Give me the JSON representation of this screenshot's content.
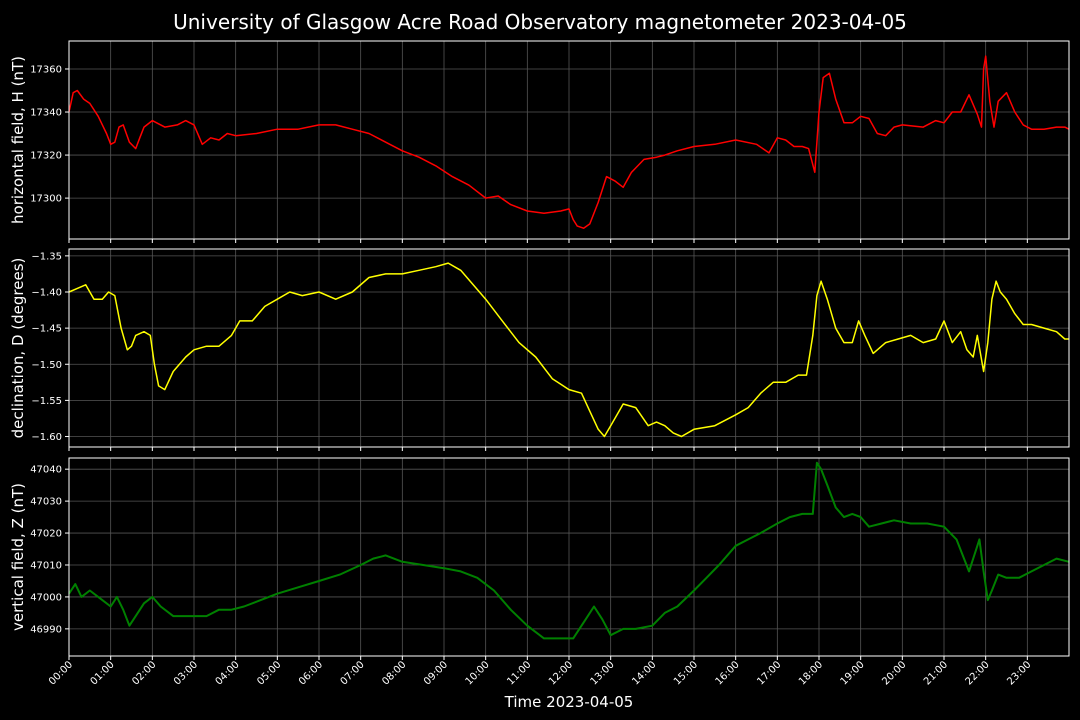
{
  "chart_data": {
    "type": "line",
    "title": "University of Glasgow Acre Road Observatory magnetometer 2023-04-05",
    "xlabel": "Time 2023-04-05",
    "xlim_hours": [
      0,
      24
    ],
    "x_ticks": [
      "00:00",
      "01:00",
      "02:00",
      "03:00",
      "04:00",
      "05:00",
      "06:00",
      "07:00",
      "08:00",
      "09:00",
      "10:00",
      "11:00",
      "12:00",
      "13:00",
      "14:00",
      "15:00",
      "16:00",
      "17:00",
      "18:00",
      "19:00",
      "20:00",
      "21:00",
      "22:00",
      "23:00"
    ],
    "grid": true,
    "background": "#000000",
    "grid_color": "#555555",
    "panels": [
      {
        "name": "horizontal",
        "ylabel": "horizontal field, H (nT)",
        "color": "#ff0000",
        "ylim": [
          17281,
          17373
        ],
        "yticks": [
          17300,
          17320,
          17340,
          17360
        ],
        "ytick_labels": [
          "17300",
          "17320",
          "17340",
          "17360"
        ],
        "x": [
          0,
          0.1,
          0.2,
          0.35,
          0.5,
          0.7,
          0.9,
          1.0,
          1.1,
          1.2,
          1.3,
          1.45,
          1.6,
          1.7,
          1.8,
          2.0,
          2.3,
          2.6,
          2.8,
          3.0,
          3.2,
          3.4,
          3.6,
          3.8,
          4.0,
          4.5,
          5.0,
          5.5,
          6.0,
          6.4,
          6.8,
          7.2,
          7.6,
          8.0,
          8.4,
          8.8,
          9.2,
          9.6,
          10.0,
          10.3,
          10.6,
          11.0,
          11.4,
          11.8,
          12.0,
          12.1,
          12.2,
          12.35,
          12.5,
          12.7,
          12.9,
          13.1,
          13.3,
          13.5,
          13.8,
          14.1,
          14.3,
          14.6,
          15.0,
          15.5,
          16.0,
          16.5,
          16.8,
          17.0,
          17.2,
          17.4,
          17.6,
          17.75,
          17.9,
          18.0,
          18.1,
          18.25,
          18.4,
          18.6,
          18.8,
          19.0,
          19.2,
          19.4,
          19.6,
          19.8,
          20.0,
          20.5,
          20.8,
          21.0,
          21.2,
          21.4,
          21.6,
          21.8,
          21.9,
          21.95,
          22.0,
          22.1,
          22.2,
          22.3,
          22.5,
          22.7,
          22.9,
          23.1,
          23.4,
          23.7,
          23.9,
          24.0
        ],
        "y": [
          17340,
          17349,
          17350,
          17346,
          17344,
          17338,
          17330,
          17325,
          17326,
          17333,
          17334,
          17326,
          17323,
          17328,
          17333,
          17336,
          17333,
          17334,
          17336,
          17334,
          17325,
          17328,
          17327,
          17330,
          17329,
          17330,
          17332,
          17332,
          17334,
          17334,
          17332,
          17330,
          17326,
          17322,
          17319,
          17315,
          17310,
          17306,
          17300,
          17301,
          17297,
          17294,
          17293,
          17294,
          17295,
          17290,
          17287,
          17286,
          17288,
          17298,
          17310,
          17308,
          17305,
          17312,
          17318,
          17319,
          17320,
          17322,
          17324,
          17325,
          17327,
          17325,
          17321,
          17328,
          17327,
          17324,
          17324,
          17323,
          17312,
          17340,
          17356,
          17358,
          17346,
          17335,
          17335,
          17338,
          17337,
          17330,
          17329,
          17333,
          17334,
          17333,
          17336,
          17335,
          17340,
          17340,
          17348,
          17339,
          17333,
          17360,
          17366,
          17345,
          17333,
          17345,
          17349,
          17340,
          17334,
          17332,
          17332,
          17333,
          17333,
          17332
        ]
      },
      {
        "name": "declination",
        "ylabel": "declination, D (degrees)",
        "color": "#ffff00",
        "ylim": [
          -1.6145,
          -1.3405
        ],
        "yticks": [
          -1.6,
          -1.55,
          -1.5,
          -1.45,
          -1.4,
          -1.35
        ],
        "ytick_labels": [
          "−1.60",
          "−1.55",
          "−1.50",
          "−1.45",
          "−1.40",
          "−1.35"
        ],
        "x": [
          0,
          0.2,
          0.4,
          0.6,
          0.8,
          0.95,
          1.1,
          1.25,
          1.4,
          1.5,
          1.6,
          1.8,
          1.95,
          2.05,
          2.15,
          2.3,
          2.5,
          2.8,
          3.0,
          3.3,
          3.6,
          3.9,
          4.1,
          4.4,
          4.7,
          5.0,
          5.3,
          5.6,
          6.0,
          6.4,
          6.8,
          7.2,
          7.6,
          8.0,
          8.4,
          8.8,
          9.1,
          9.4,
          9.7,
          10.0,
          10.4,
          10.8,
          11.2,
          11.6,
          12.0,
          12.3,
          12.5,
          12.7,
          12.85,
          13.0,
          13.3,
          13.6,
          13.9,
          14.1,
          14.3,
          14.5,
          14.7,
          15.0,
          15.5,
          16.0,
          16.3,
          16.6,
          16.9,
          17.2,
          17.5,
          17.7,
          17.85,
          17.95,
          18.05,
          18.2,
          18.4,
          18.6,
          18.8,
          18.95,
          19.1,
          19.3,
          19.6,
          19.9,
          20.2,
          20.5,
          20.8,
          21.0,
          21.2,
          21.4,
          21.55,
          21.7,
          21.8,
          21.95,
          22.05,
          22.15,
          22.25,
          22.35,
          22.5,
          22.7,
          22.9,
          23.1,
          23.4,
          23.7,
          23.9,
          24.0
        ],
        "y": [
          -1.4,
          -1.395,
          -1.39,
          -1.41,
          -1.41,
          -1.4,
          -1.405,
          -1.45,
          -1.48,
          -1.475,
          -1.46,
          -1.455,
          -1.46,
          -1.5,
          -1.53,
          -1.535,
          -1.51,
          -1.49,
          -1.48,
          -1.475,
          -1.475,
          -1.46,
          -1.44,
          -1.44,
          -1.42,
          -1.41,
          -1.4,
          -1.405,
          -1.4,
          -1.41,
          -1.4,
          -1.38,
          -1.375,
          -1.375,
          -1.37,
          -1.365,
          -1.36,
          -1.37,
          -1.39,
          -1.41,
          -1.44,
          -1.47,
          -1.49,
          -1.52,
          -1.535,
          -1.54,
          -1.565,
          -1.59,
          -1.6,
          -1.585,
          -1.555,
          -1.56,
          -1.585,
          -1.58,
          -1.585,
          -1.595,
          -1.6,
          -1.59,
          -1.585,
          -1.57,
          -1.56,
          -1.54,
          -1.525,
          -1.525,
          -1.515,
          -1.515,
          -1.46,
          -1.405,
          -1.385,
          -1.41,
          -1.45,
          -1.47,
          -1.47,
          -1.44,
          -1.46,
          -1.485,
          -1.47,
          -1.465,
          -1.46,
          -1.47,
          -1.465,
          -1.44,
          -1.47,
          -1.455,
          -1.48,
          -1.49,
          -1.46,
          -1.51,
          -1.47,
          -1.41,
          -1.385,
          -1.4,
          -1.41,
          -1.43,
          -1.445,
          -1.445,
          -1.45,
          -1.455,
          -1.465,
          -1.465
        ]
      },
      {
        "name": "vertical",
        "ylabel": "vertical field, Z (nT)",
        "color": "#008000",
        "ylim": [
          46981.5,
          47043.5
        ],
        "yticks": [
          46990,
          47000,
          47010,
          47020,
          47030,
          47040
        ],
        "ytick_labels": [
          "46990",
          "47000",
          "47010",
          "47020",
          "47030",
          "47040"
        ],
        "x": [
          0,
          0.15,
          0.3,
          0.5,
          0.8,
          1.0,
          1.15,
          1.3,
          1.45,
          1.6,
          1.8,
          2.0,
          2.2,
          2.5,
          3.0,
          3.3,
          3.6,
          3.9,
          4.2,
          4.6,
          5.0,
          5.5,
          6.0,
          6.5,
          7.0,
          7.3,
          7.6,
          8.0,
          8.5,
          9.0,
          9.4,
          9.8,
          10.2,
          10.6,
          11.0,
          11.4,
          11.8,
          12.1,
          12.4,
          12.6,
          12.8,
          13.0,
          13.3,
          13.6,
          14.0,
          14.3,
          14.6,
          15.0,
          15.3,
          15.6,
          16.0,
          16.3,
          16.6,
          17.0,
          17.3,
          17.6,
          17.85,
          17.95,
          18.05,
          18.2,
          18.4,
          18.6,
          18.8,
          19.0,
          19.2,
          19.5,
          19.8,
          20.2,
          20.6,
          21.0,
          21.3,
          21.6,
          21.75,
          21.85,
          21.95,
          22.05,
          22.15,
          22.3,
          22.5,
          22.8,
          23.1,
          23.4,
          23.7,
          24.0
        ],
        "y": [
          47001,
          47004,
          47000,
          47002,
          46999,
          46997,
          47000,
          46996,
          46991,
          46994,
          46998,
          47000,
          46997,
          46994,
          46994,
          46994,
          46996,
          46996,
          46997,
          46999,
          47001,
          47003,
          47005,
          47007,
          47010,
          47012,
          47013,
          47011,
          47010,
          47009,
          47008,
          47006,
          47002,
          46996,
          46991,
          46987,
          46987,
          46987,
          46993,
          46997,
          46993,
          46988,
          46990,
          46990,
          46991,
          46995,
          46997,
          47002,
          47006,
          47010,
          47016,
          47018,
          47020,
          47023,
          47025,
          47026,
          47026,
          47042,
          47040,
          47035,
          47028,
          47025,
          47026,
          47025,
          47022,
          47023,
          47024,
          47023,
          47023,
          47022,
          47018,
          47008,
          47014,
          47018,
          47008,
          46999,
          47002,
          47007,
          47006,
          47006,
          47008,
          47010,
          47012,
          47011
        ]
      }
    ]
  }
}
